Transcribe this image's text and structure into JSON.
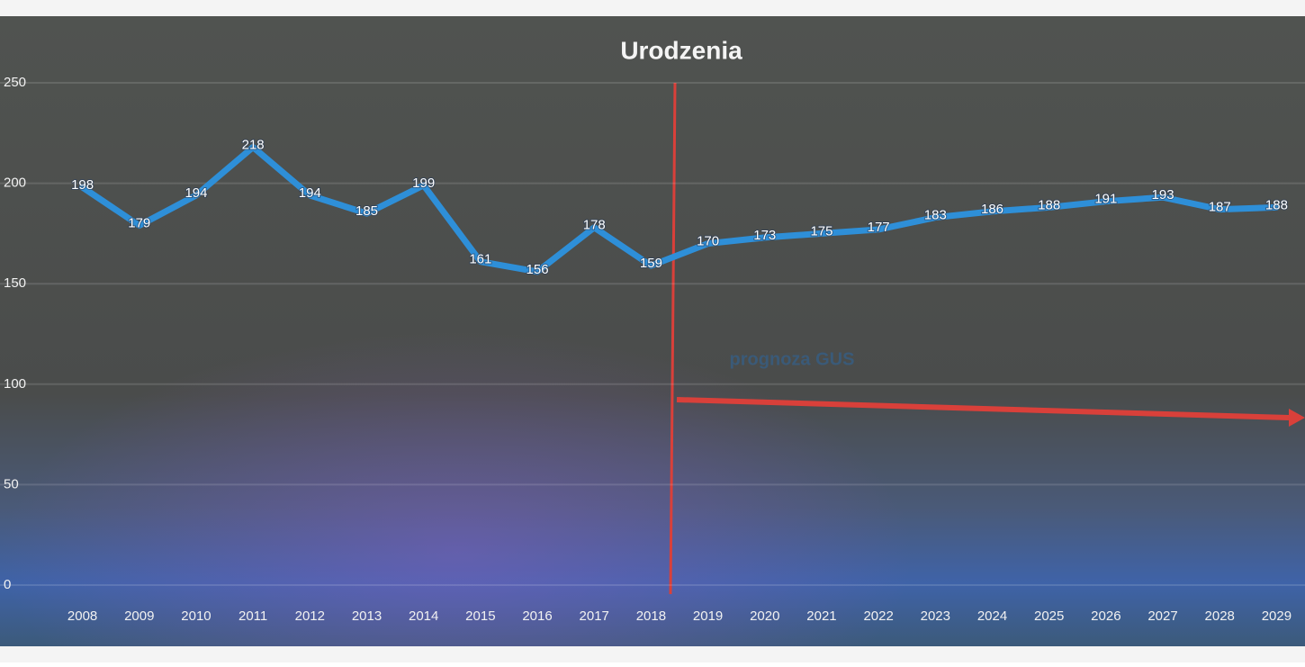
{
  "chart_data": {
    "type": "line",
    "title": "Urodzenia",
    "annotations": [
      "prognoza GUS"
    ],
    "categories": [
      "2008",
      "2009",
      "2010",
      "2011",
      "2012",
      "2013",
      "2014",
      "2015",
      "2016",
      "2017",
      "2018",
      "2019",
      "2020",
      "2021",
      "2022",
      "2023",
      "2024",
      "2025",
      "2026",
      "2027",
      "2028",
      "2029"
    ],
    "series": [
      {
        "name": "Urodzenia",
        "color": "#2e8fd8",
        "values": [
          198,
          179,
          194,
          218,
          194,
          185,
          199,
          161,
          156,
          178,
          159,
          170,
          173,
          175,
          177,
          183,
          186,
          188,
          191,
          193,
          187,
          188
        ]
      }
    ],
    "ylim": [
      0,
      250
    ],
    "yticks": [
      0,
      50,
      100,
      150,
      200,
      250
    ],
    "grid": true
  }
}
